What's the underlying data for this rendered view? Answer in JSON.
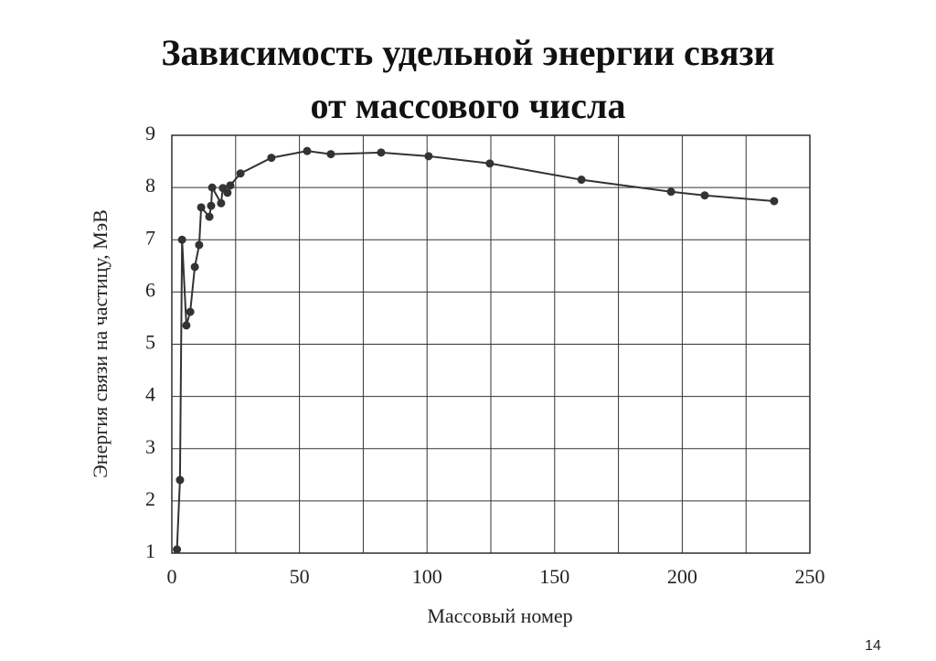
{
  "title_lines": [
    "Зависимость удельной энергии связи",
    "от массового числа"
  ],
  "page_number": "14",
  "chart_data": {
    "type": "line",
    "x_label": "Массовый номер",
    "y_label": "Энергия связи на частицу, МэВ",
    "x": [
      2,
      3.2,
      4,
      5.7,
      7.2,
      9,
      10.7,
      11.5,
      14.7,
      15.4,
      15.8,
      19.3,
      20,
      21.8,
      22.9,
      26.9,
      39,
      53,
      62.3,
      82,
      100.6,
      124.6,
      160.5,
      195.6,
      208.8,
      236
    ],
    "values": [
      1.07,
      2.4,
      7.0,
      5.36,
      5.62,
      6.48,
      6.9,
      7.62,
      7.44,
      7.65,
      8.0,
      7.7,
      7.99,
      7.9,
      8.04,
      8.27,
      8.57,
      8.7,
      8.64,
      8.67,
      8.6,
      8.46,
      8.15,
      7.92,
      7.85,
      7.74
    ],
    "color": "#333333",
    "xlim": [
      0,
      250
    ],
    "ylim": [
      1,
      9
    ],
    "xticks": [
      0,
      50,
      100,
      150,
      200,
      250
    ],
    "x_minor_ticks": [
      25,
      75,
      125,
      175,
      225
    ],
    "yticks": [
      1,
      2,
      3,
      4,
      5,
      6,
      7,
      8,
      9
    ],
    "grid": true
  }
}
